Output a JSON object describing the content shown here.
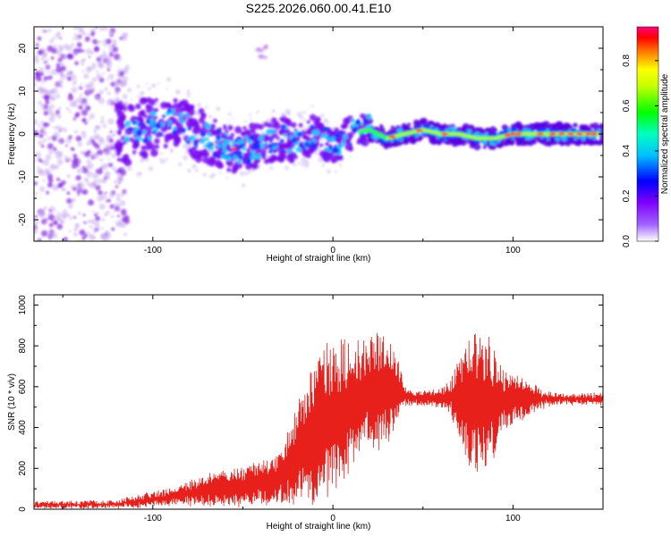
{
  "title": "S225.2026.060.00.41.E10",
  "chart_data": [
    {
      "type": "heatmap",
      "name": "spectrogram",
      "xlabel": "Height of straight line (km)",
      "ylabel": "Frequency (Hz)",
      "xlim": [
        -166,
        150
      ],
      "ylim": [
        -25,
        25
      ],
      "xticks": [
        -100,
        0,
        100
      ],
      "yticks": [
        -20,
        -10,
        0,
        10,
        20
      ],
      "colorbar": {
        "label": "Normalized spectral amplitude",
        "range": [
          0.0,
          0.95
        ],
        "ticks": [
          "0.0",
          "0.2",
          "0.4",
          "0.6",
          "0.8"
        ],
        "tick_values": [
          0.0,
          0.2,
          0.4,
          0.6,
          0.8
        ],
        "colors": [
          "#ffffff",
          "#8000ff",
          "#0000ff",
          "#00ffff",
          "#00ff00",
          "#ffff00",
          "#ff0000",
          "#ff0080"
        ]
      },
      "ridge": {
        "x": [
          -115,
          -100,
          -90,
          -80,
          -70,
          -60,
          -50,
          -40,
          -30,
          -20,
          -10,
          0,
          10,
          20,
          30,
          40,
          50,
          60,
          70,
          80,
          90,
          100,
          110,
          120,
          130,
          148
        ],
        "freq": [
          0,
          2,
          3,
          1,
          -1,
          -3,
          -4,
          -2,
          -1,
          -2,
          0,
          -3,
          0,
          1,
          -1,
          0,
          1,
          0,
          0,
          -1,
          -1,
          0,
          0,
          0,
          0,
          0
        ]
      }
    },
    {
      "type": "line",
      "name": "snr",
      "xlabel": "Height of straight line (km)",
      "ylabel": "SNR (10 * v/v)",
      "xlim": [
        -166,
        150
      ],
      "ylim": [
        0,
        1050
      ],
      "xticks": [
        -100,
        0,
        100
      ],
      "yticks": [
        0,
        200,
        400,
        600,
        800,
        1000
      ],
      "color": "#e8201c",
      "envelope": {
        "x": [
          -166,
          -140,
          -120,
          -110,
          -100,
          -90,
          -80,
          -70,
          -60,
          -50,
          -40,
          -30,
          -25,
          -20,
          -15,
          -10,
          -5,
          0,
          5,
          10,
          15,
          20,
          25,
          30,
          35,
          40,
          45,
          50,
          55,
          60,
          65,
          70,
          75,
          80,
          85,
          90,
          95,
          100,
          105,
          110,
          115,
          120,
          130,
          140,
          150
        ],
        "mean": [
          20,
          22,
          25,
          35,
          50,
          60,
          80,
          90,
          100,
          110,
          130,
          150,
          200,
          260,
          320,
          380,
          420,
          440,
          480,
          520,
          540,
          560,
          580,
          600,
          580,
          560,
          540,
          540,
          545,
          545,
          550,
          540,
          530,
          520,
          520,
          520,
          530,
          540,
          540,
          540,
          540,
          540,
          540,
          540,
          540
        ],
        "amplitude": [
          15,
          15,
          15,
          30,
          35,
          40,
          60,
          80,
          90,
          100,
          110,
          120,
          180,
          250,
          330,
          380,
          400,
          380,
          350,
          330,
          300,
          280,
          300,
          280,
          200,
          60,
          30,
          40,
          40,
          50,
          80,
          200,
          300,
          350,
          350,
          250,
          150,
          120,
          100,
          80,
          50,
          30,
          25,
          25,
          25
        ]
      }
    }
  ]
}
